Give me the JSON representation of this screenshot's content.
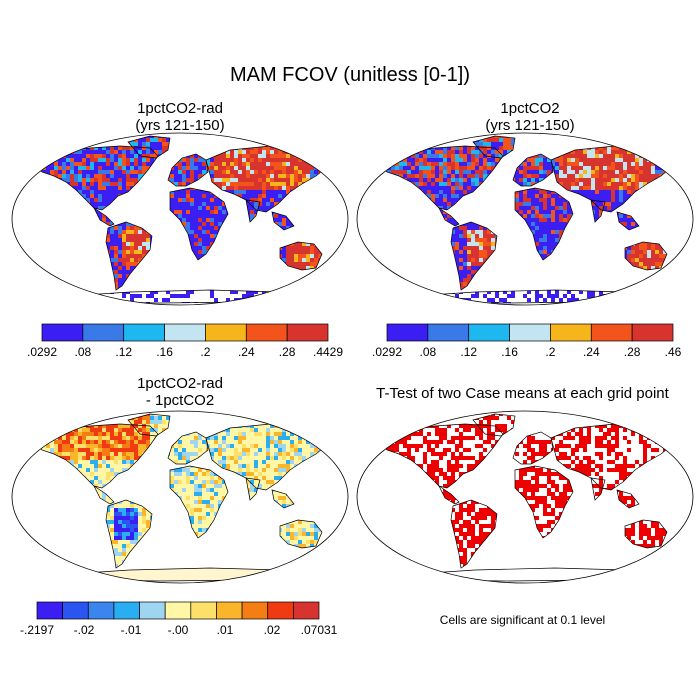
{
  "figure": {
    "title": "MAM FCOV (unitless [0-1])",
    "panels": [
      {
        "id": "tl",
        "title_line1": "1pctCO2-rad",
        "title_line2": "(yrs 121-150)"
      },
      {
        "id": "tr",
        "title_line1": "1pctCO2",
        "title_line2": "(yrs 121-150)"
      },
      {
        "id": "bl",
        "title_line1": "1pctCO2-rad",
        "title_line2": "- 1pctCO2"
      },
      {
        "id": "br",
        "title_line1": "T-Test of two Case means at each grid point",
        "title_line2": ""
      }
    ],
    "colorbars": {
      "tl": {
        "colors": [
          "#3b1ef2",
          "#3a79e8",
          "#1fb7f0",
          "#c3e5f2",
          "#f5b51b",
          "#f2541b",
          "#d7332f"
        ],
        "labels": [
          ".0292",
          ".08",
          ".12",
          ".16",
          ".2",
          ".24",
          ".28",
          ".4429"
        ]
      },
      "tr": {
        "colors": [
          "#3b1ef2",
          "#3a79e8",
          "#1fb7f0",
          "#c3e5f2",
          "#f5b51b",
          "#f2541b",
          "#d7332f"
        ],
        "labels": [
          ".0292",
          ".08",
          ".12",
          ".16",
          ".2",
          ".24",
          ".28",
          ".46"
        ]
      },
      "bl": {
        "colors": [
          "#3b1ef2",
          "#2a55f0",
          "#3a86ee",
          "#29aef2",
          "#9fd5f0",
          "#fff6a6",
          "#fde06a",
          "#fbb52a",
          "#f57e14",
          "#f03a12",
          "#d7332f"
        ],
        "labels": [
          "-.2197",
          "-.02",
          "-.01",
          "-.00",
          ".01",
          ".02",
          ".07031"
        ]
      }
    },
    "significance_note": "Cells are significant at 0.1 level",
    "palette": {
      "land_fill_high": "#e02020",
      "land_fill_low": "#3b1ef2",
      "diff_neutral": "#fff6a6",
      "significant": "#ee0000"
    }
  }
}
